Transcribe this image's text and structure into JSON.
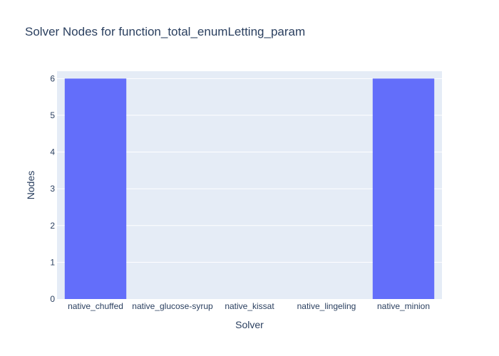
{
  "chart_data": {
    "type": "bar",
    "title": "Solver Nodes for function_total_enumLetting_param",
    "xlabel": "Solver",
    "ylabel": "Nodes",
    "categories": [
      "native_chuffed",
      "native_glucose-syrup",
      "native_kissat",
      "native_lingeling",
      "native_minion"
    ],
    "values": [
      6,
      0,
      0,
      0,
      6
    ],
    "ylim": [
      0,
      6.2
    ],
    "yticks": [
      0,
      1,
      2,
      3,
      4,
      5,
      6
    ],
    "grid": true,
    "legend": "none",
    "colors": {
      "bar": "#636efa",
      "plot_bg": "#e5ecf6",
      "grid": "#ffffff",
      "text": "#2a3f5f"
    }
  }
}
